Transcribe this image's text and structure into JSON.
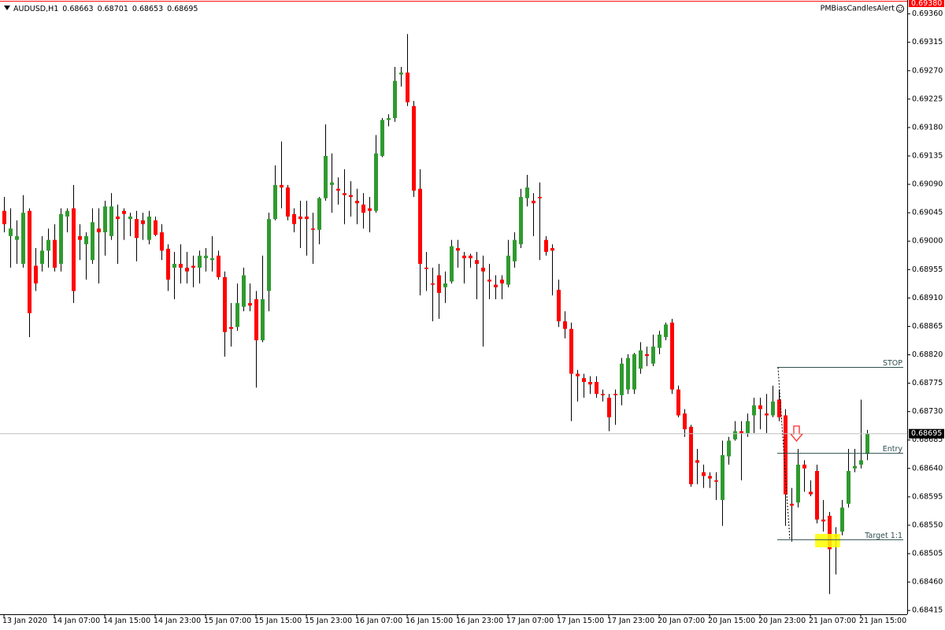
{
  "chart_data": {
    "type": "candlestick",
    "symbol": "AUDUSD,H1",
    "indicator": "PMBiasCandlesAlert",
    "colors": {
      "up": "#2f9a2f",
      "down": "#ff0000",
      "wick": "#000000"
    },
    "ylim": [
      0.68409,
      0.69382
    ],
    "yticks": [
      {
        "value": 0.6936,
        "label": "0.69360"
      },
      {
        "value": 0.69315,
        "label": "0.69315"
      },
      {
        "value": 0.6927,
        "label": "0.69270"
      },
      {
        "value": 0.69225,
        "label": "0.69225"
      },
      {
        "value": 0.6918,
        "label": "0.69180"
      },
      {
        "value": 0.69135,
        "label": "0.69135"
      },
      {
        "value": 0.6909,
        "label": "0.69090"
      },
      {
        "value": 0.69045,
        "label": "0.69045"
      },
      {
        "value": 0.69,
        "label": "0.69000"
      },
      {
        "value": 0.68955,
        "label": "0.68955"
      },
      {
        "value": 0.6891,
        "label": "0.68910"
      },
      {
        "value": 0.68865,
        "label": "0.68865"
      },
      {
        "value": 0.6882,
        "label": "0.68820"
      },
      {
        "value": 0.68775,
        "label": "0.68775"
      },
      {
        "value": 0.6873,
        "label": "0.68730"
      },
      {
        "value": 0.68685,
        "label": "0.68685"
      },
      {
        "value": 0.6864,
        "label": "0.68640"
      },
      {
        "value": 0.68595,
        "label": "0.68595"
      },
      {
        "value": 0.6855,
        "label": "0.68550"
      },
      {
        "value": 0.68505,
        "label": "0.68505"
      },
      {
        "value": 0.6846,
        "label": "0.68460"
      },
      {
        "value": 0.68415,
        "label": "0.68415"
      }
    ],
    "top_price": {
      "value": 0.6938,
      "label": "0.69380"
    },
    "current_price": 0.68695,
    "levels": [
      {
        "label": "STOP",
        "value": 0.688
      },
      {
        "label": "Entry",
        "value": 0.68664
      },
      {
        "label": "Target 1:1",
        "value": 0.68527
      }
    ],
    "categories": [
      "13 Jan 2020",
      null,
      null,
      null,
      null,
      null,
      null,
      null,
      "14 Jan 07:00",
      null,
      null,
      null,
      null,
      null,
      null,
      null,
      "14 Jan 15:00",
      null,
      null,
      null,
      null,
      null,
      null,
      null,
      "14 Jan 23:00",
      null,
      null,
      null,
      null,
      null,
      null,
      null,
      "15 Jan 07:00",
      null,
      null,
      null,
      null,
      null,
      null,
      null,
      "15 Jan 15:00",
      null,
      null,
      null,
      null,
      null,
      null,
      null,
      "15 Jan 23:00",
      null,
      null,
      null,
      null,
      null,
      null,
      null,
      "16 Jan 07:00",
      null,
      null,
      null,
      null,
      null,
      null,
      null,
      "16 Jan 15:00",
      null,
      null,
      null,
      null,
      null,
      null,
      null,
      "16 Jan 23:00",
      null,
      null,
      null,
      null,
      null,
      null,
      null,
      "17 Jan 07:00",
      null,
      null,
      null,
      null,
      null,
      null,
      null,
      "17 Jan 15:00",
      null,
      null,
      null,
      null,
      null,
      null,
      null,
      "17 Jan 23:00",
      null,
      null,
      null,
      null,
      null,
      null,
      null,
      "20 Jan 07:00",
      null,
      null,
      null,
      null,
      null,
      null,
      null,
      "20 Jan 15:00",
      null,
      null,
      null,
      null,
      null,
      null,
      null,
      "20 Jan 23:00",
      null,
      null,
      null,
      null,
      null,
      null,
      null,
      "21 Jan 07:00",
      null,
      null,
      null,
      null,
      null,
      null,
      null,
      "21 Jan 15:00",
      null
    ],
    "ohlc": [
      [
        0.69048,
        0.6907,
        0.69014,
        0.69027
      ],
      [
        0.69008,
        0.69052,
        0.68958,
        0.6902
      ],
      [
        0.69002,
        0.69033,
        0.68964,
        0.69008
      ],
      [
        0.68964,
        0.69073,
        0.68958,
        0.69045
      ],
      [
        0.69048,
        0.69052,
        0.68848,
        0.68886
      ],
      [
        0.68961,
        0.68989,
        0.68921,
        0.68933
      ],
      [
        0.68964,
        0.69008,
        0.68952,
        0.68985
      ],
      [
        0.68985,
        0.6902,
        0.68958,
        0.69002
      ],
      [
        0.69002,
        0.69027,
        0.68952,
        0.68958
      ],
      [
        0.68964,
        0.69052,
        0.68952,
        0.69043
      ],
      [
        0.69039,
        0.69052,
        0.69014,
        0.69048
      ],
      [
        0.69052,
        0.69089,
        0.68902,
        0.68921
      ],
      [
        0.69008,
        0.69027,
        0.6897,
        0.69002
      ],
      [
        0.68995,
        0.69014,
        0.68939,
        0.69008
      ],
      [
        0.6897,
        0.69052,
        0.68964,
        0.6903
      ],
      [
        0.6902,
        0.69052,
        0.68933,
        0.69014
      ],
      [
        0.69014,
        0.69064,
        0.68977,
        0.69055
      ],
      [
        0.69008,
        0.69076,
        0.69002,
        0.69055
      ],
      [
        0.69039,
        0.69058,
        0.68964,
        0.69035
      ],
      [
        0.69048,
        0.69052,
        0.69002,
        0.69043
      ],
      [
        0.69035,
        0.69045,
        0.69008,
        0.69039
      ],
      [
        0.69035,
        0.69048,
        0.68968,
        0.69005
      ],
      [
        0.69033,
        0.69045,
        0.69002,
        0.69027
      ],
      [
        0.69002,
        0.69048,
        0.68995,
        0.69039
      ],
      [
        0.69033,
        0.69039,
        0.69008,
        0.6901
      ],
      [
        0.69014,
        0.69027,
        0.6897,
        0.68985
      ],
      [
        0.68988,
        0.68995,
        0.68921,
        0.68939
      ],
      [
        0.68958,
        0.68983,
        0.68908,
        0.68964
      ],
      [
        0.68964,
        0.68995,
        0.68933,
        0.68958
      ],
      [
        0.68958,
        0.68983,
        0.68933,
        0.68952
      ],
      [
        0.68961,
        0.68977,
        0.68927,
        0.68958
      ],
      [
        0.68958,
        0.68985,
        0.68933,
        0.68977
      ],
      [
        0.68973,
        0.68989,
        0.68952,
        0.68977
      ],
      [
        0.6897,
        0.69008,
        0.68952,
        0.68973
      ],
      [
        0.68977,
        0.68985,
        0.68939,
        0.68943
      ],
      [
        0.68943,
        0.68952,
        0.68817,
        0.68856
      ],
      [
        0.68864,
        0.68902,
        0.68833,
        0.68861
      ],
      [
        0.68864,
        0.68933,
        0.68858,
        0.68902
      ],
      [
        0.68896,
        0.68958,
        0.68889,
        0.68946
      ],
      [
        0.68902,
        0.68933,
        0.68889,
        0.68898
      ],
      [
        0.68908,
        0.68921,
        0.68768,
        0.68843
      ],
      [
        0.68843,
        0.68977,
        0.6884,
        0.68908
      ],
      [
        0.68921,
        0.69045,
        0.68889,
        0.69035
      ],
      [
        0.69035,
        0.6912,
        0.69033,
        0.69089
      ],
      [
        0.69089,
        0.69158,
        0.69052,
        0.69085
      ],
      [
        0.69085,
        0.69089,
        0.69033,
        0.69039
      ],
      [
        0.69043,
        0.69052,
        0.69014,
        0.69027
      ],
      [
        0.69039,
        0.69064,
        0.68989,
        0.69035
      ],
      [
        0.69039,
        0.69064,
        0.68977,
        0.69035
      ],
      [
        0.6902,
        0.69045,
        0.68964,
        0.69018
      ],
      [
        0.69018,
        0.6907,
        0.68995,
        0.69068
      ],
      [
        0.69068,
        0.69185,
        0.69064,
        0.69135
      ],
      [
        0.69089,
        0.69139,
        0.69045,
        0.69093
      ],
      [
        0.69083,
        0.69101,
        0.69058,
        0.6908
      ],
      [
        0.69076,
        0.69114,
        0.69027,
        0.69073
      ],
      [
        0.69073,
        0.69095,
        0.69039,
        0.6907
      ],
      [
        0.69064,
        0.69083,
        0.69027,
        0.6906
      ],
      [
        0.69058,
        0.69076,
        0.6902,
        0.69045
      ],
      [
        0.69052,
        0.6907,
        0.69014,
        0.69048
      ],
      [
        0.69048,
        0.69168,
        0.69045,
        0.69139
      ],
      [
        0.69135,
        0.69195,
        0.69133,
        0.69192
      ],
      [
        0.69192,
        0.69201,
        0.69182,
        0.69195
      ],
      [
        0.69195,
        0.69276,
        0.69189,
        0.69254
      ],
      [
        0.69264,
        0.69276,
        0.69245,
        0.69267
      ],
      [
        0.69267,
        0.69328,
        0.69214,
        0.6922
      ],
      [
        0.69214,
        0.69222,
        0.6907,
        0.6908
      ],
      [
        0.69083,
        0.69114,
        0.68914,
        0.68964
      ],
      [
        0.68958,
        0.68983,
        0.68921,
        0.68956
      ],
      [
        0.68933,
        0.68958,
        0.68873,
        0.68931
      ],
      [
        0.68946,
        0.68964,
        0.68877,
        0.68918
      ],
      [
        0.68927,
        0.68952,
        0.68902,
        0.68933
      ],
      [
        0.68936,
        0.69002,
        0.68933,
        0.68992
      ],
      [
        0.68989,
        0.69002,
        0.68958,
        0.68985
      ],
      [
        0.68977,
        0.68983,
        0.68933,
        0.68973
      ],
      [
        0.68977,
        0.6898,
        0.68958,
        0.68973
      ],
      [
        0.6897,
        0.68983,
        0.68908,
        0.68964
      ],
      [
        0.68958,
        0.68977,
        0.68833,
        0.68952
      ],
      [
        0.68939,
        0.68964,
        0.68908,
        0.68936
      ],
      [
        0.68931,
        0.68946,
        0.68908,
        0.68927
      ],
      [
        0.68939,
        0.68946,
        0.68908,
        0.68933
      ],
      [
        0.68931,
        0.69002,
        0.68927,
        0.68977
      ],
      [
        0.68968,
        0.69014,
        0.68958,
        0.69002
      ],
      [
        0.68995,
        0.69083,
        0.68989,
        0.6907
      ],
      [
        0.69068,
        0.69105,
        0.69055,
        0.69085
      ],
      [
        0.69064,
        0.69076,
        0.69008,
        0.6906
      ],
      [
        0.6907,
        0.69093,
        0.6897,
        0.69068
      ],
      [
        0.69002,
        0.69008,
        0.68977,
        0.68983
      ],
      [
        0.68989,
        0.68995,
        0.68914,
        0.68985
      ],
      [
        0.68923,
        0.68939,
        0.68864,
        0.68873
      ],
      [
        0.68873,
        0.68889,
        0.68846,
        0.68861
      ],
      [
        0.68861,
        0.68871,
        0.68715,
        0.6879
      ],
      [
        0.6879,
        0.68796,
        0.68746,
        0.68786
      ],
      [
        0.68783,
        0.6879,
        0.68752,
        0.68777
      ],
      [
        0.68777,
        0.68786,
        0.68758,
        0.68773
      ],
      [
        0.68777,
        0.68786,
        0.68752,
        0.68758
      ],
      [
        0.68758,
        0.68765,
        0.68746,
        0.68756
      ],
      [
        0.68752,
        0.68758,
        0.68699,
        0.68721
      ],
      [
        0.68758,
        0.68765,
        0.68709,
        0.68756
      ],
      [
        0.68756,
        0.68815,
        0.6874,
        0.68806
      ],
      [
        0.68765,
        0.68821,
        0.68758,
        0.68815
      ],
      [
        0.68765,
        0.68823,
        0.68758,
        0.68821
      ],
      [
        0.68798,
        0.6884,
        0.6879,
        0.68827
      ],
      [
        0.68821,
        0.68833,
        0.68802,
        0.68818
      ],
      [
        0.68806,
        0.68852,
        0.68802,
        0.68833
      ],
      [
        0.68831,
        0.68858,
        0.68821,
        0.68852
      ],
      [
        0.68848,
        0.68871,
        0.68843,
        0.68868
      ],
      [
        0.68871,
        0.68877,
        0.68758,
        0.68765
      ],
      [
        0.68765,
        0.68771,
        0.68721,
        0.68724
      ],
      [
        0.68727,
        0.68734,
        0.6869,
        0.68702
      ],
      [
        0.68706,
        0.68709,
        0.68611,
        0.68615
      ],
      [
        0.68653,
        0.68671,
        0.68615,
        0.68649
      ],
      [
        0.68634,
        0.68646,
        0.68609,
        0.68628
      ],
      [
        0.68628,
        0.68634,
        0.68609,
        0.68624
      ],
      [
        0.68621,
        0.68634,
        0.6859,
        0.68619
      ],
      [
        0.6859,
        0.68684,
        0.68549,
        0.68661
      ],
      [
        0.68659,
        0.6869,
        0.68646,
        0.68684
      ],
      [
        0.68686,
        0.68715,
        0.68684,
        0.68699
      ],
      [
        0.68699,
        0.68715,
        0.68621,
        0.68696
      ],
      [
        0.68696,
        0.68727,
        0.6869,
        0.68715
      ],
      [
        0.68724,
        0.68752,
        0.68696,
        0.6874
      ],
      [
        0.6874,
        0.68752,
        0.68702,
        0.68734
      ],
      [
        0.68727,
        0.68758,
        0.68696,
        0.68724
      ],
      [
        0.68724,
        0.68771,
        0.68721,
        0.68746
      ],
      [
        0.68749,
        0.68765,
        0.68715,
        0.68721
      ],
      [
        0.68724,
        0.68734,
        0.68549,
        0.68599
      ],
      [
        0.68584,
        0.68609,
        0.68524,
        0.68581
      ],
      [
        0.68586,
        0.68671,
        0.68578,
        0.68646
      ],
      [
        0.68646,
        0.68653,
        0.68603,
        0.6864
      ],
      [
        0.68603,
        0.68621,
        0.68596,
        0.68599
      ],
      [
        0.68636,
        0.68646,
        0.68553,
        0.68559
      ],
      [
        0.68559,
        0.6859,
        0.6854,
        0.68556
      ],
      [
        0.68565,
        0.68571,
        0.68441,
        0.68512
      ],
      [
        0.68534,
        0.68547,
        0.68472,
        0.68532
      ],
      [
        0.6854,
        0.6859,
        0.68534,
        0.68578
      ],
      [
        0.68584,
        0.68671,
        0.68578,
        0.68636
      ],
      [
        0.6864,
        0.68671,
        0.68634,
        0.68644
      ],
      [
        0.68646,
        0.68749,
        0.6864,
        0.68653
      ],
      [
        0.68663,
        0.68701,
        0.68653,
        0.68695
      ]
    ]
  }
}
